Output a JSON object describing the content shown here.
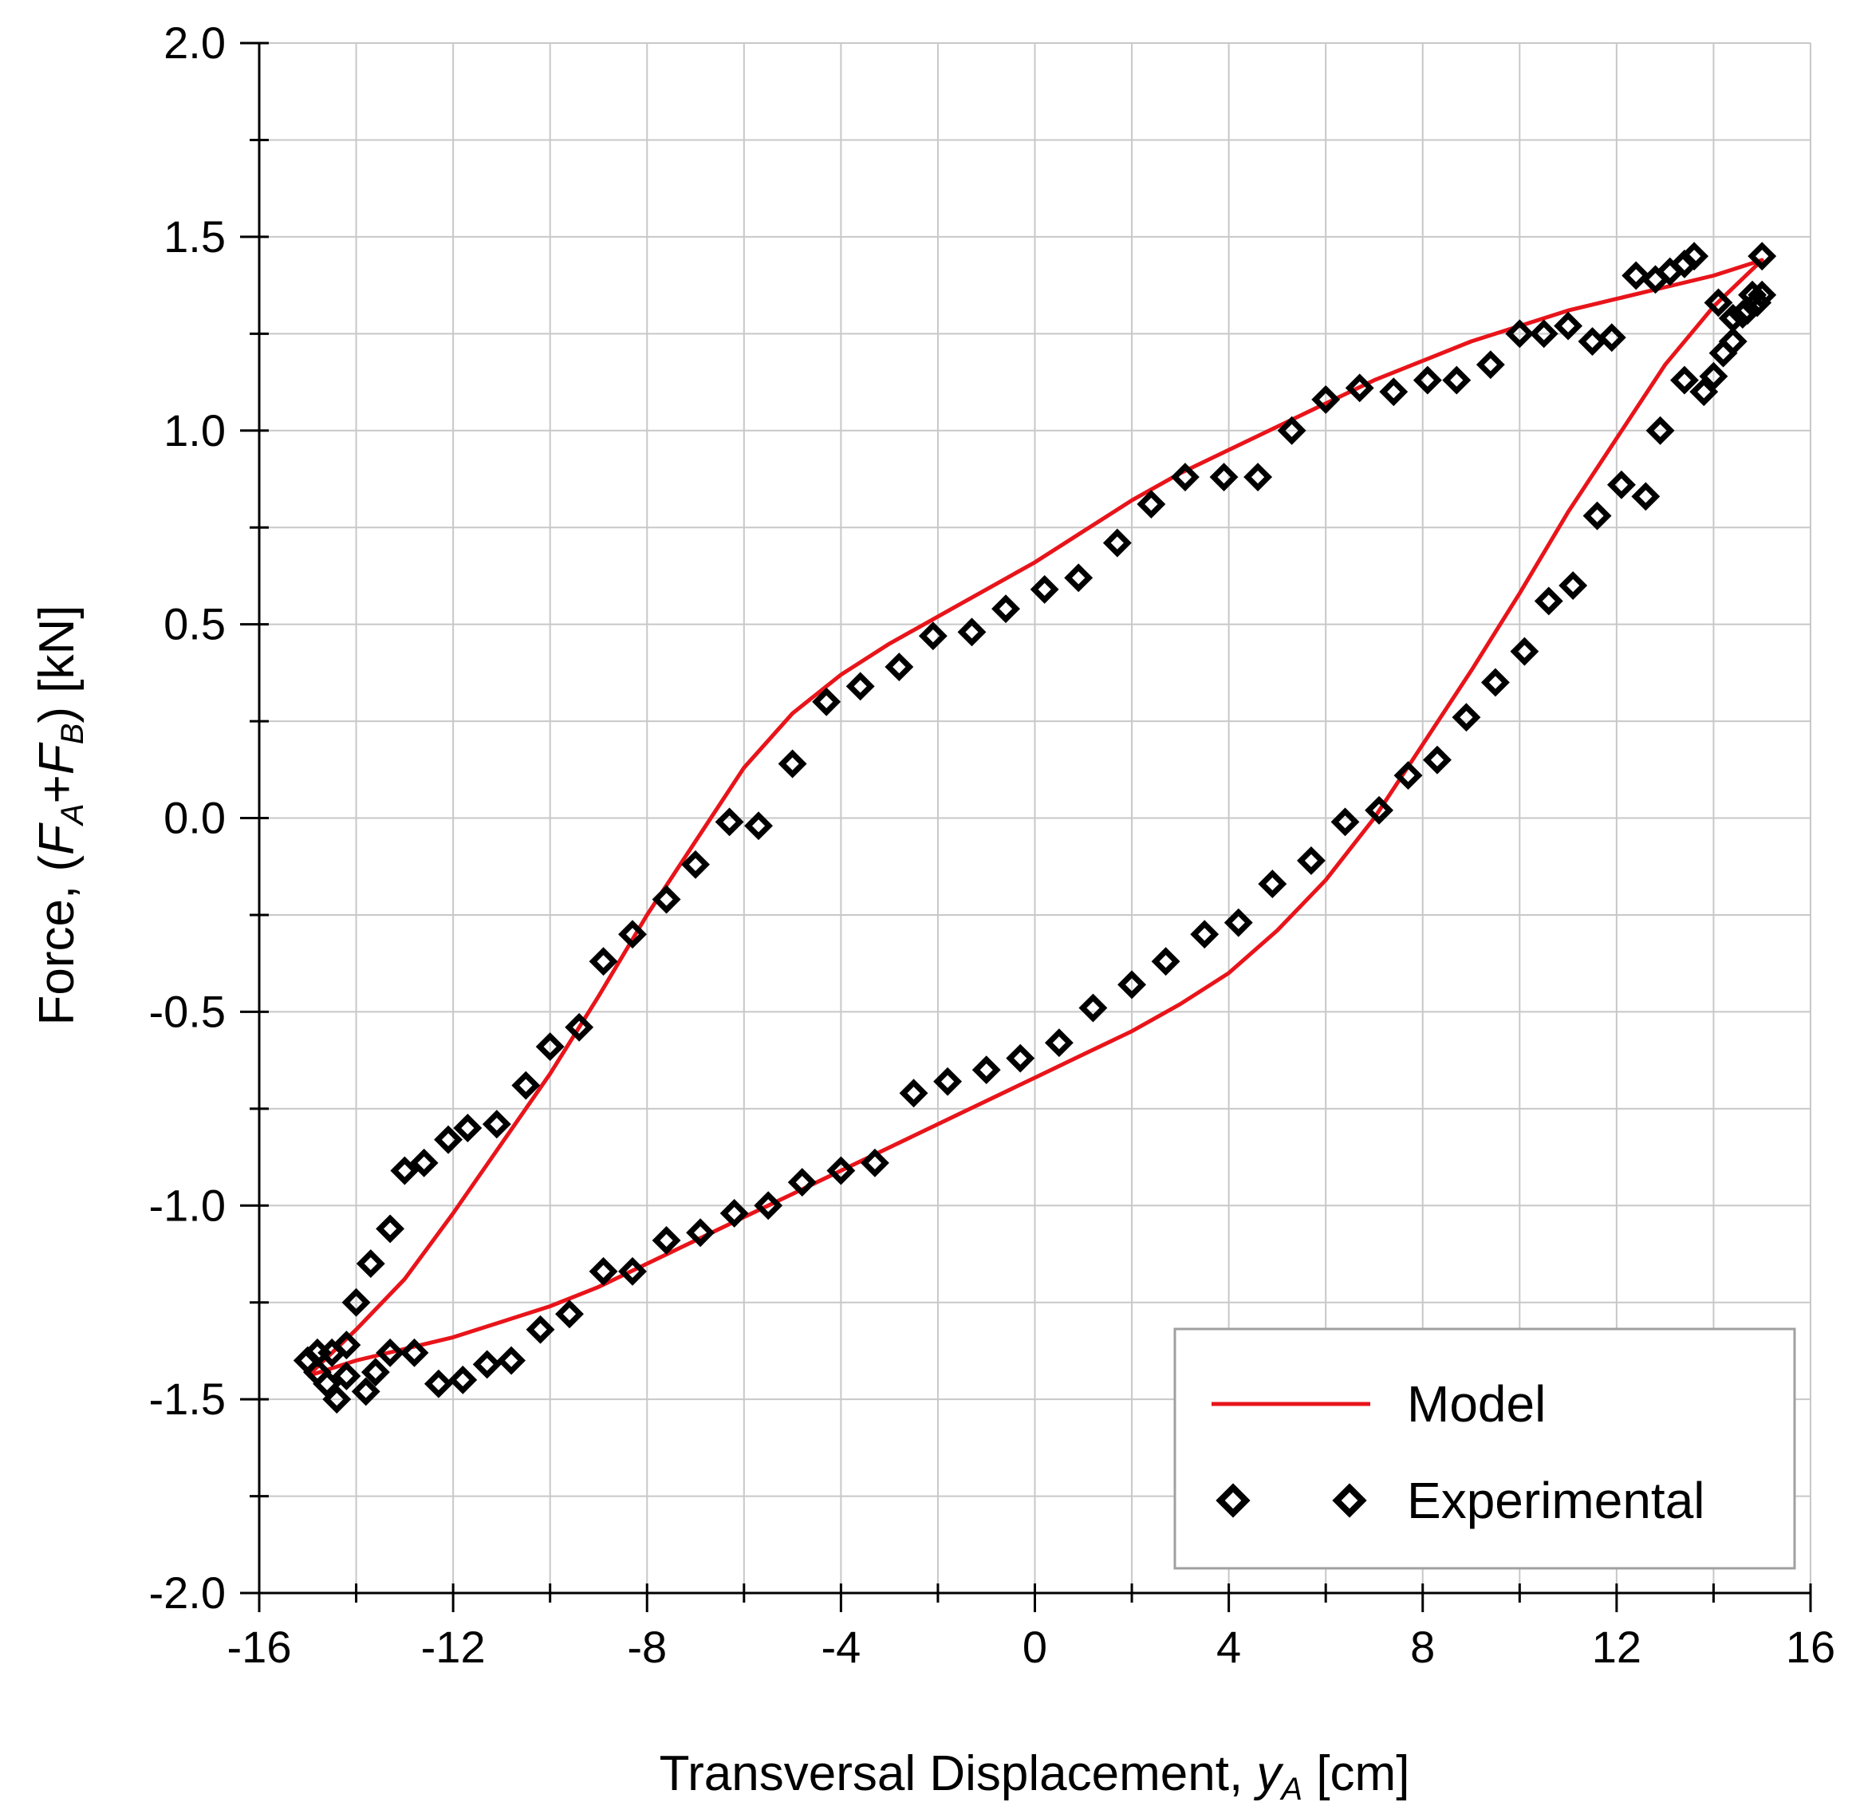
{
  "chart_data": {
    "type": "scatter",
    "title": "",
    "xlabel": {
      "prefix": "Transversal Displacement, ",
      "var": "y",
      "sub": "A",
      "unit": " [cm]"
    },
    "ylabel": {
      "prefix": "Force, (",
      "f1": "F",
      "s1": "A",
      "plus": "+",
      "f2": "F",
      "s2": "B",
      "suffix": ") [kN]"
    },
    "xlim": [
      -16,
      16
    ],
    "ylim": [
      -2.0,
      2.0
    ],
    "xticks": [
      -16,
      -12,
      -8,
      -4,
      0,
      4,
      8,
      12,
      16
    ],
    "xtick_labels": [
      "-16",
      "-12",
      "-8",
      "-4",
      "0",
      "4",
      "8",
      "12",
      "16"
    ],
    "yticks": [
      -2.0,
      -1.5,
      -1.0,
      -0.5,
      0.0,
      0.5,
      1.0,
      1.5,
      2.0
    ],
    "ytick_labels": [
      "-2.0",
      "-1.5",
      "-1.0",
      "-0.5",
      "0.0",
      "0.5",
      "1.0",
      "1.5",
      "2.0"
    ],
    "grid": true,
    "legend_position": "bottom-right",
    "colors": {
      "model": "#e8141a",
      "experimental": "#000000",
      "grid": "#c8c8c8"
    },
    "series": [
      {
        "name": "Model",
        "kind": "line",
        "points": [
          [
            -15.0,
            -1.44
          ],
          [
            -14.0,
            -1.4
          ],
          [
            -13.0,
            -1.37
          ],
          [
            -12.0,
            -1.34
          ],
          [
            -11.0,
            -1.3
          ],
          [
            -10.0,
            -1.26
          ],
          [
            -9.0,
            -1.21
          ],
          [
            -8.0,
            -1.15
          ],
          [
            -7.0,
            -1.09
          ],
          [
            -6.0,
            -1.03
          ],
          [
            -5.0,
            -0.97
          ],
          [
            -4.0,
            -0.91
          ],
          [
            -3.0,
            -0.85
          ],
          [
            -2.0,
            -0.79
          ],
          [
            -1.0,
            -0.73
          ],
          [
            0.0,
            -0.67
          ],
          [
            1.0,
            -0.61
          ],
          [
            2.0,
            -0.55
          ],
          [
            3.0,
            -0.48
          ],
          [
            4.0,
            -0.4
          ],
          [
            5.0,
            -0.29
          ],
          [
            6.0,
            -0.16
          ],
          [
            7.0,
            0.0
          ],
          [
            8.0,
            0.19
          ],
          [
            9.0,
            0.38
          ],
          [
            10.0,
            0.58
          ],
          [
            11.0,
            0.79
          ],
          [
            12.0,
            0.98
          ],
          [
            13.0,
            1.17
          ],
          [
            14.0,
            1.32
          ],
          [
            15.0,
            1.44
          ],
          [
            14.0,
            1.4
          ],
          [
            13.0,
            1.37
          ],
          [
            12.0,
            1.34
          ],
          [
            11.0,
            1.31
          ],
          [
            10.0,
            1.27
          ],
          [
            9.0,
            1.23
          ],
          [
            8.0,
            1.18
          ],
          [
            7.0,
            1.13
          ],
          [
            6.0,
            1.07
          ],
          [
            5.0,
            1.01
          ],
          [
            4.0,
            0.95
          ],
          [
            3.0,
            0.89
          ],
          [
            2.0,
            0.82
          ],
          [
            1.0,
            0.74
          ],
          [
            0.0,
            0.66
          ],
          [
            -1.0,
            0.59
          ],
          [
            -2.0,
            0.52
          ],
          [
            -3.0,
            0.45
          ],
          [
            -4.0,
            0.37
          ],
          [
            -5.0,
            0.27
          ],
          [
            -6.0,
            0.13
          ],
          [
            -7.0,
            -0.06
          ],
          [
            -8.0,
            -0.25
          ],
          [
            -9.0,
            -0.46
          ],
          [
            -10.0,
            -0.66
          ],
          [
            -11.0,
            -0.84
          ],
          [
            -12.0,
            -1.02
          ],
          [
            -13.0,
            -1.19
          ],
          [
            -14.0,
            -1.32
          ],
          [
            -15.0,
            -1.44
          ]
        ]
      },
      {
        "name": "Experimental",
        "kind": "scatter",
        "points": [
          [
            15.0,
            1.45
          ],
          [
            14.8,
            1.35
          ],
          [
            14.6,
            1.3
          ],
          [
            14.4,
            1.23
          ],
          [
            14.2,
            1.2
          ],
          [
            14.0,
            1.14
          ],
          [
            13.8,
            1.1
          ],
          [
            13.4,
            1.13
          ],
          [
            12.9,
            1.0
          ],
          [
            12.6,
            0.83
          ],
          [
            12.1,
            0.86
          ],
          [
            11.6,
            0.78
          ],
          [
            11.1,
            0.6
          ],
          [
            10.6,
            0.56
          ],
          [
            10.1,
            0.43
          ],
          [
            9.5,
            0.35
          ],
          [
            8.9,
            0.26
          ],
          [
            8.3,
            0.15
          ],
          [
            7.7,
            0.11
          ],
          [
            7.1,
            0.02
          ],
          [
            6.4,
            -0.01
          ],
          [
            5.7,
            -0.11
          ],
          [
            4.9,
            -0.17
          ],
          [
            4.2,
            -0.27
          ],
          [
            3.5,
            -0.3
          ],
          [
            2.7,
            -0.37
          ],
          [
            2.0,
            -0.43
          ],
          [
            1.2,
            -0.49
          ],
          [
            0.5,
            -0.58
          ],
          [
            -0.3,
            -0.62
          ],
          [
            -1.0,
            -0.65
          ],
          [
            -1.8,
            -0.68
          ],
          [
            -2.5,
            -0.71
          ],
          [
            -3.3,
            -0.89
          ],
          [
            -4.0,
            -0.91
          ],
          [
            -4.8,
            -0.94
          ],
          [
            -5.5,
            -1.0
          ],
          [
            -6.2,
            -1.02
          ],
          [
            -6.9,
            -1.07
          ],
          [
            -7.6,
            -1.09
          ],
          [
            -8.3,
            -1.17
          ],
          [
            -8.9,
            -1.17
          ],
          [
            -9.6,
            -1.28
          ],
          [
            -10.2,
            -1.32
          ],
          [
            -10.8,
            -1.4
          ],
          [
            -11.3,
            -1.41
          ],
          [
            -11.8,
            -1.45
          ],
          [
            -12.3,
            -1.46
          ],
          [
            -12.8,
            -1.38
          ],
          [
            -13.3,
            -1.38
          ],
          [
            -13.6,
            -1.43
          ],
          [
            -13.8,
            -1.48
          ],
          [
            -14.2,
            -1.44
          ],
          [
            -14.4,
            -1.5
          ],
          [
            -14.6,
            -1.46
          ],
          [
            -14.8,
            -1.43
          ],
          [
            -15.0,
            -1.4
          ],
          [
            -14.8,
            -1.38
          ],
          [
            -14.5,
            -1.38
          ],
          [
            -14.2,
            -1.36
          ],
          [
            -14.0,
            -1.25
          ],
          [
            -13.7,
            -1.15
          ],
          [
            -13.3,
            -1.06
          ],
          [
            -13.0,
            -0.91
          ],
          [
            -12.6,
            -0.89
          ],
          [
            -12.1,
            -0.83
          ],
          [
            -11.7,
            -0.8
          ],
          [
            -11.1,
            -0.79
          ],
          [
            -10.5,
            -0.69
          ],
          [
            -10.0,
            -0.59
          ],
          [
            -9.4,
            -0.54
          ],
          [
            -8.9,
            -0.37
          ],
          [
            -8.3,
            -0.3
          ],
          [
            -7.6,
            -0.21
          ],
          [
            -7.0,
            -0.12
          ],
          [
            -6.3,
            -0.01
          ],
          [
            -5.7,
            -0.02
          ],
          [
            -5.0,
            0.14
          ],
          [
            -4.3,
            0.3
          ],
          [
            -3.6,
            0.34
          ],
          [
            -2.8,
            0.39
          ],
          [
            -2.1,
            0.47
          ],
          [
            -1.3,
            0.48
          ],
          [
            -0.6,
            0.54
          ],
          [
            0.2,
            0.59
          ],
          [
            0.9,
            0.62
          ],
          [
            1.7,
            0.71
          ],
          [
            2.4,
            0.81
          ],
          [
            3.1,
            0.88
          ],
          [
            3.9,
            0.88
          ],
          [
            4.6,
            0.88
          ],
          [
            5.3,
            1.0
          ],
          [
            6.0,
            1.08
          ],
          [
            6.7,
            1.11
          ],
          [
            7.4,
            1.1
          ],
          [
            8.1,
            1.13
          ],
          [
            8.7,
            1.13
          ],
          [
            9.4,
            1.17
          ],
          [
            10.0,
            1.25
          ],
          [
            10.5,
            1.25
          ],
          [
            11.0,
            1.27
          ],
          [
            11.5,
            1.23
          ],
          [
            11.9,
            1.24
          ],
          [
            12.4,
            1.4
          ],
          [
            12.8,
            1.39
          ],
          [
            13.1,
            1.41
          ],
          [
            13.4,
            1.43
          ],
          [
            13.6,
            1.45
          ],
          [
            14.1,
            1.33
          ],
          [
            14.4,
            1.29
          ],
          [
            14.7,
            1.31
          ],
          [
            14.9,
            1.33
          ],
          [
            15.0,
            1.35
          ]
        ]
      }
    ]
  }
}
